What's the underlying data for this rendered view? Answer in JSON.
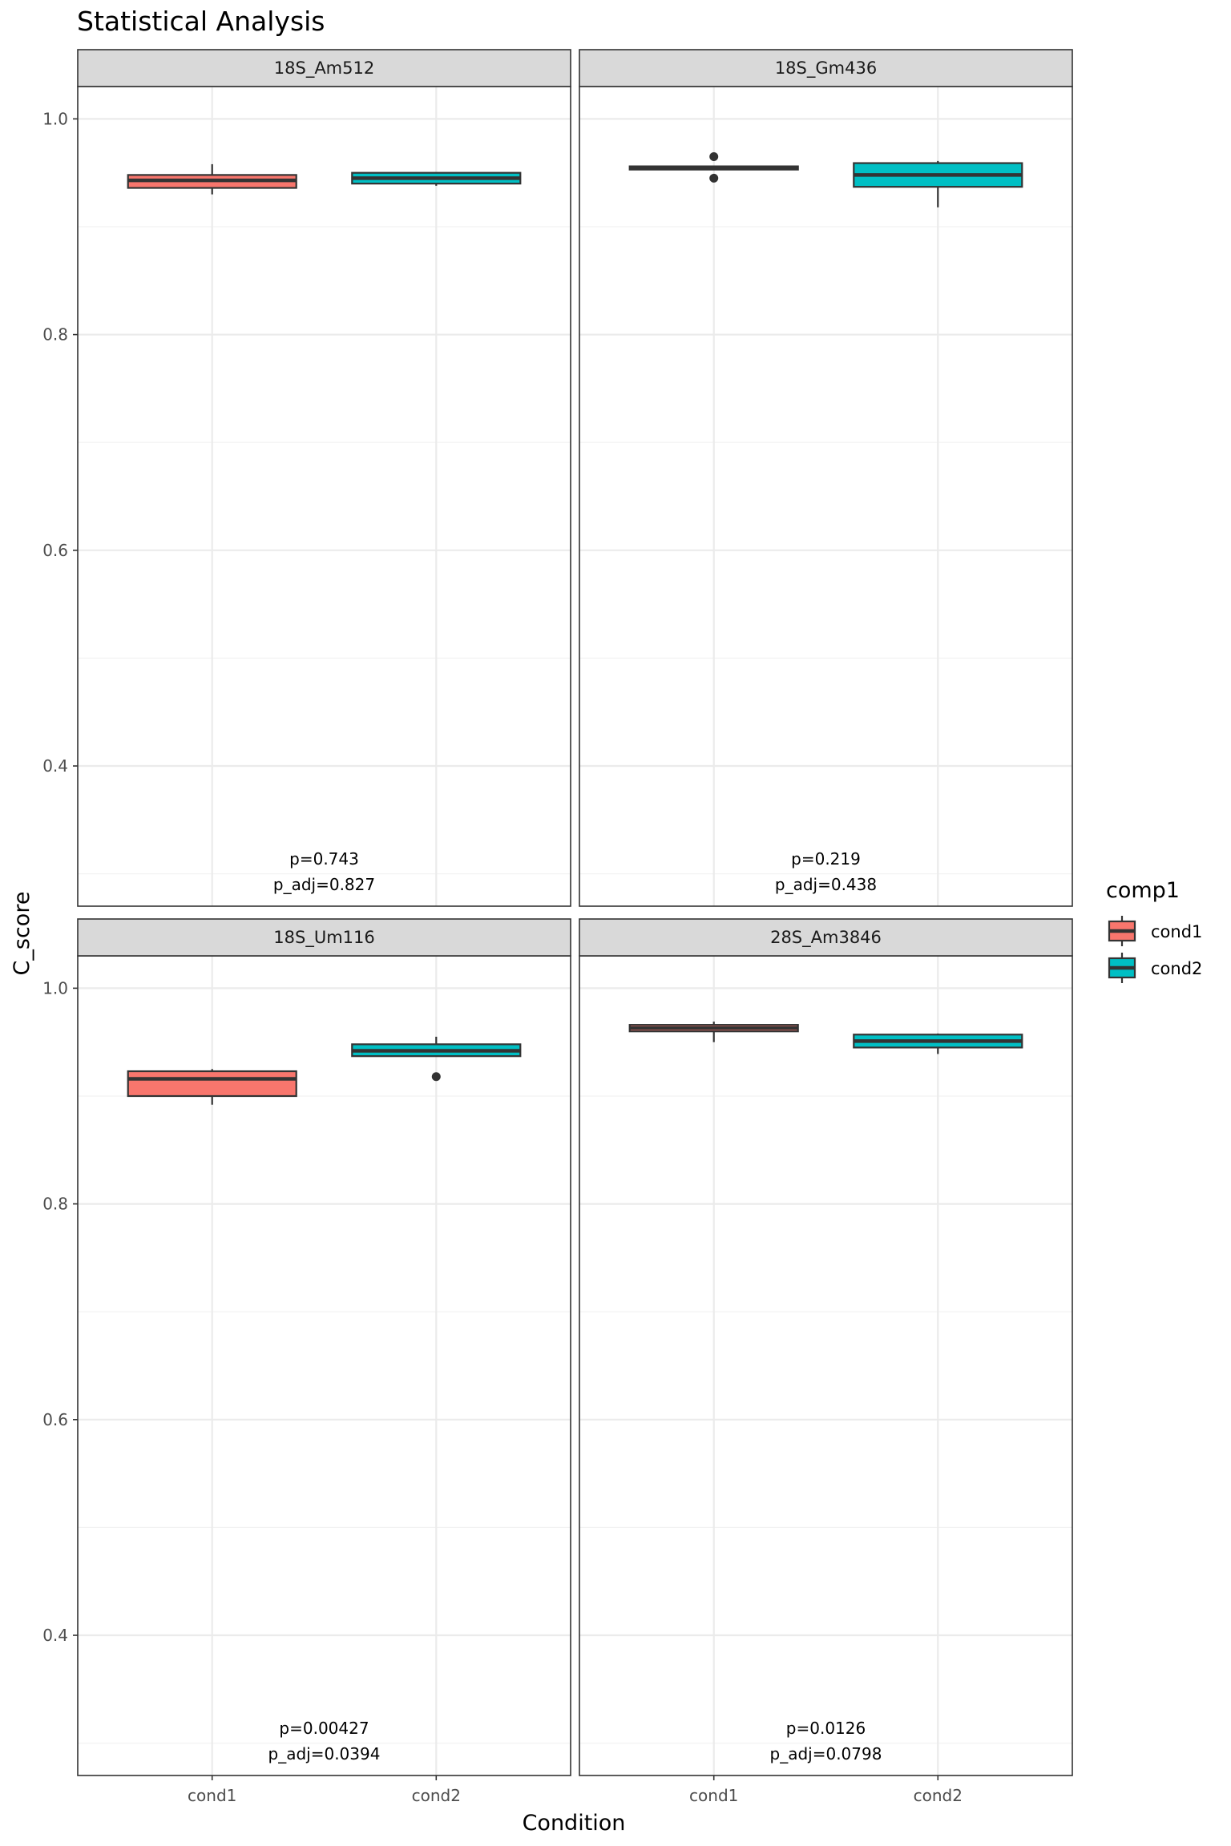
{
  "chart_data": {
    "type": "boxplot",
    "title": "Statistical Analysis",
    "xlabel": "Condition",
    "ylabel": "C_score",
    "ylim": [
      0.27,
      1.03
    ],
    "y_ticks": [
      0.4,
      0.6,
      0.8,
      1.0
    ],
    "y_tick_labels": [
      "0.4",
      "0.6",
      "0.8",
      "1.0"
    ],
    "categories": [
      "cond1",
      "cond2"
    ],
    "grid": true,
    "legend": {
      "title": "comp1",
      "position": "right",
      "entries": [
        {
          "label": "cond1",
          "color": "#F8766D"
        },
        {
          "label": "cond2",
          "color": "#00BFC4"
        }
      ]
    },
    "facets": [
      {
        "name": "18S_Am512",
        "p_label": "p=0.743",
        "p_adj_label": "p_adj=0.827",
        "boxes": [
          {
            "category": "cond1",
            "color": "#F8766D",
            "whisker_low": 0.93,
            "q1": 0.936,
            "median": 0.943,
            "q3": 0.948,
            "whisker_high": 0.958,
            "outliers": []
          },
          {
            "category": "cond2",
            "color": "#00BFC4",
            "whisker_low": 0.938,
            "q1": 0.94,
            "median": 0.945,
            "q3": 0.95,
            "whisker_high": 0.95,
            "outliers": []
          }
        ]
      },
      {
        "name": "18S_Gm436",
        "p_label": "p=0.219",
        "p_adj_label": "p_adj=0.438",
        "boxes": [
          {
            "category": "cond1",
            "color": "#F8766D",
            "whisker_low": 0.953,
            "q1": 0.953,
            "median": 0.955,
            "q3": 0.956,
            "whisker_high": 0.956,
            "outliers": [
              0.965,
              0.945
            ]
          },
          {
            "category": "cond2",
            "color": "#00BFC4",
            "whisker_low": 0.918,
            "q1": 0.937,
            "median": 0.948,
            "q3": 0.959,
            "whisker_high": 0.961,
            "outliers": []
          }
        ]
      },
      {
        "name": "18S_Um116",
        "p_label": "p=0.00427",
        "p_adj_label": "p_adj=0.0394",
        "boxes": [
          {
            "category": "cond1",
            "color": "#F8766D",
            "whisker_low": 0.892,
            "q1": 0.9,
            "median": 0.916,
            "q3": 0.923,
            "whisker_high": 0.925,
            "outliers": []
          },
          {
            "category": "cond2",
            "color": "#00BFC4",
            "whisker_low": 0.937,
            "q1": 0.937,
            "median": 0.942,
            "q3": 0.948,
            "whisker_high": 0.955,
            "outliers": [
              0.918
            ]
          }
        ]
      },
      {
        "name": "28S_Am3846",
        "p_label": "p=0.0126",
        "p_adj_label": "p_adj=0.0798",
        "boxes": [
          {
            "category": "cond1",
            "color": "#F8766D",
            "whisker_low": 0.95,
            "q1": 0.96,
            "median": 0.963,
            "q3": 0.966,
            "whisker_high": 0.969,
            "outliers": []
          },
          {
            "category": "cond2",
            "color": "#00BFC4",
            "whisker_low": 0.939,
            "q1": 0.945,
            "median": 0.951,
            "q3": 0.957,
            "whisker_high": 0.958,
            "outliers": []
          }
        ]
      }
    ]
  }
}
